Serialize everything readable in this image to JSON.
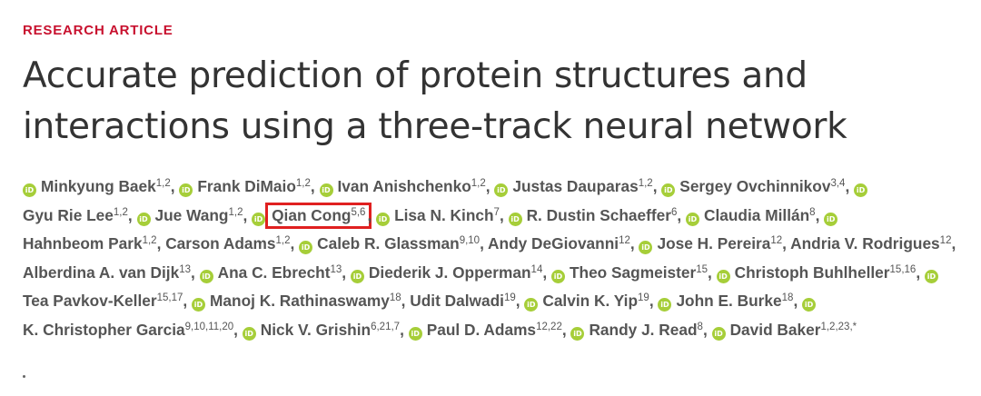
{
  "article": {
    "section_label": "RESEARCH ARTICLE",
    "title": "Accurate prediction of protein structures and interactions using a three-track neural network"
  },
  "colors": {
    "section": "#c8102e",
    "orcid": "#a6ce39",
    "highlight_box": "#e02020"
  },
  "orcid_glyph": "iD",
  "authors": [
    {
      "name": "Minkyung Baek",
      "aff": "1,2",
      "orcid": true
    },
    {
      "name": "Frank DiMaio",
      "aff": "1,2",
      "orcid": true
    },
    {
      "name": "Ivan Anishchenko",
      "aff": "1,2",
      "orcid": true
    },
    {
      "name": "Justas Dauparas",
      "aff": "1,2",
      "orcid": true
    },
    {
      "name": "Sergey Ovchinnikov",
      "aff": "3,4",
      "orcid": true
    },
    {
      "name": "Gyu Rie Lee",
      "aff": "1,2",
      "orcid": true
    },
    {
      "name": "Jue Wang",
      "aff": "1,2",
      "orcid": true
    },
    {
      "name": "Qian Cong",
      "aff": "5,6",
      "orcid": true,
      "highlighted": true
    },
    {
      "name": "Lisa N. Kinch",
      "aff": "7",
      "orcid": true
    },
    {
      "name": "R. Dustin Schaeffer",
      "aff": "6",
      "orcid": true
    },
    {
      "name": "Claudia Millán",
      "aff": "8",
      "orcid": true
    },
    {
      "name": "Hahnbeom Park",
      "aff": "1,2",
      "orcid": true
    },
    {
      "name": "Carson Adams",
      "aff": "1,2",
      "orcid": false
    },
    {
      "name": "Caleb R. Glassman",
      "aff": "9,10",
      "orcid": true
    },
    {
      "name": "Andy DeGiovanni",
      "aff": "12",
      "orcid": false
    },
    {
      "name": "Jose H. Pereira",
      "aff": "12",
      "orcid": true
    },
    {
      "name": "Andria V. Rodrigues",
      "aff": "12",
      "orcid": false
    },
    {
      "name": "Alberdina A. van Dijk",
      "aff": "13",
      "orcid": false
    },
    {
      "name": "Ana C. Ebrecht",
      "aff": "13",
      "orcid": true
    },
    {
      "name": "Diederik J. Opperman",
      "aff": "14",
      "orcid": true
    },
    {
      "name": "Theo Sagmeister",
      "aff": "15",
      "orcid": true
    },
    {
      "name": "Christoph Buhlheller",
      "aff": "15,16",
      "orcid": true
    },
    {
      "name": "Tea Pavkov-Keller",
      "aff": "15,17",
      "orcid": true
    },
    {
      "name": "Manoj K. Rathinaswamy",
      "aff": "18",
      "orcid": true
    },
    {
      "name": "Udit Dalwadi",
      "aff": "19",
      "orcid": false
    },
    {
      "name": "Calvin K. Yip",
      "aff": "19",
      "orcid": true
    },
    {
      "name": "John E. Burke",
      "aff": "18",
      "orcid": true
    },
    {
      "name": "K. Christopher Garcia",
      "aff": "9,10,11,20",
      "orcid": true
    },
    {
      "name": "Nick V. Grishin",
      "aff": "6,21,7",
      "orcid": true
    },
    {
      "name": "Paul D. Adams",
      "aff": "12,22",
      "orcid": true
    },
    {
      "name": "Randy J. Read",
      "aff": "8",
      "orcid": true
    },
    {
      "name": "David Baker",
      "aff": "1,2,23,*",
      "orcid": true
    }
  ]
}
